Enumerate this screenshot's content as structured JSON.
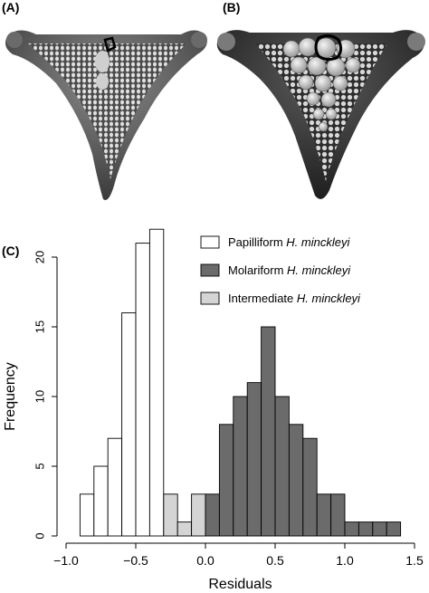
{
  "panels": {
    "a": "(A)",
    "b": "(B)",
    "c": "(C)"
  },
  "chart_data": {
    "type": "bar",
    "xlabel": "Residuals",
    "ylabel": "Frequency",
    "xlim": [
      -1.0,
      1.5
    ],
    "ylim": [
      0,
      22
    ],
    "xticks": [
      "−1.0",
      "−0.5",
      "0.0",
      "0.5",
      "1.0",
      "1.5"
    ],
    "yticks": [
      "0",
      "5",
      "10",
      "15",
      "20"
    ],
    "bin_width": 0.1,
    "legend": {
      "placement": "top-right",
      "items": [
        {
          "prefix": "Papilliform ",
          "species": "H. minckleyi",
          "color": "#ffffff"
        },
        {
          "prefix": "Molariform ",
          "species": "H. minckleyi",
          "color": "#6b6b6b"
        },
        {
          "prefix": "Intermediate ",
          "species": "H. minckleyi",
          "color": "#d4d4d4"
        }
      ]
    },
    "series": [
      {
        "group": "papilliform",
        "color": "#ffffff",
        "bins": [
          [
            -0.9,
            -0.8
          ],
          [
            -0.8,
            -0.7
          ],
          [
            -0.7,
            -0.6
          ],
          [
            -0.6,
            -0.5
          ],
          [
            -0.5,
            -0.4
          ],
          [
            -0.4,
            -0.3
          ]
        ],
        "values": [
          3,
          5,
          7,
          16,
          21,
          22
        ]
      },
      {
        "group": "intermediate",
        "color": "#d4d4d4",
        "bins": [
          [
            -0.3,
            -0.2
          ],
          [
            -0.2,
            -0.1
          ],
          [
            -0.1,
            0.0
          ]
        ],
        "values": [
          3,
          1,
          3
        ]
      },
      {
        "group": "molariform",
        "color": "#6b6b6b",
        "bins": [
          [
            0.0,
            0.1
          ],
          [
            0.1,
            0.2
          ],
          [
            0.2,
            0.3
          ],
          [
            0.3,
            0.4
          ],
          [
            0.4,
            0.5
          ],
          [
            0.5,
            0.6
          ],
          [
            0.6,
            0.7
          ],
          [
            0.7,
            0.8
          ],
          [
            0.8,
            0.9
          ],
          [
            0.9,
            1.0
          ],
          [
            1.0,
            1.1
          ],
          [
            1.1,
            1.2
          ],
          [
            1.2,
            1.3
          ],
          [
            1.3,
            1.4
          ]
        ],
        "values": [
          3,
          8,
          10,
          11,
          15,
          10,
          8,
          7,
          3,
          3,
          1,
          1,
          1,
          1
        ]
      }
    ]
  }
}
